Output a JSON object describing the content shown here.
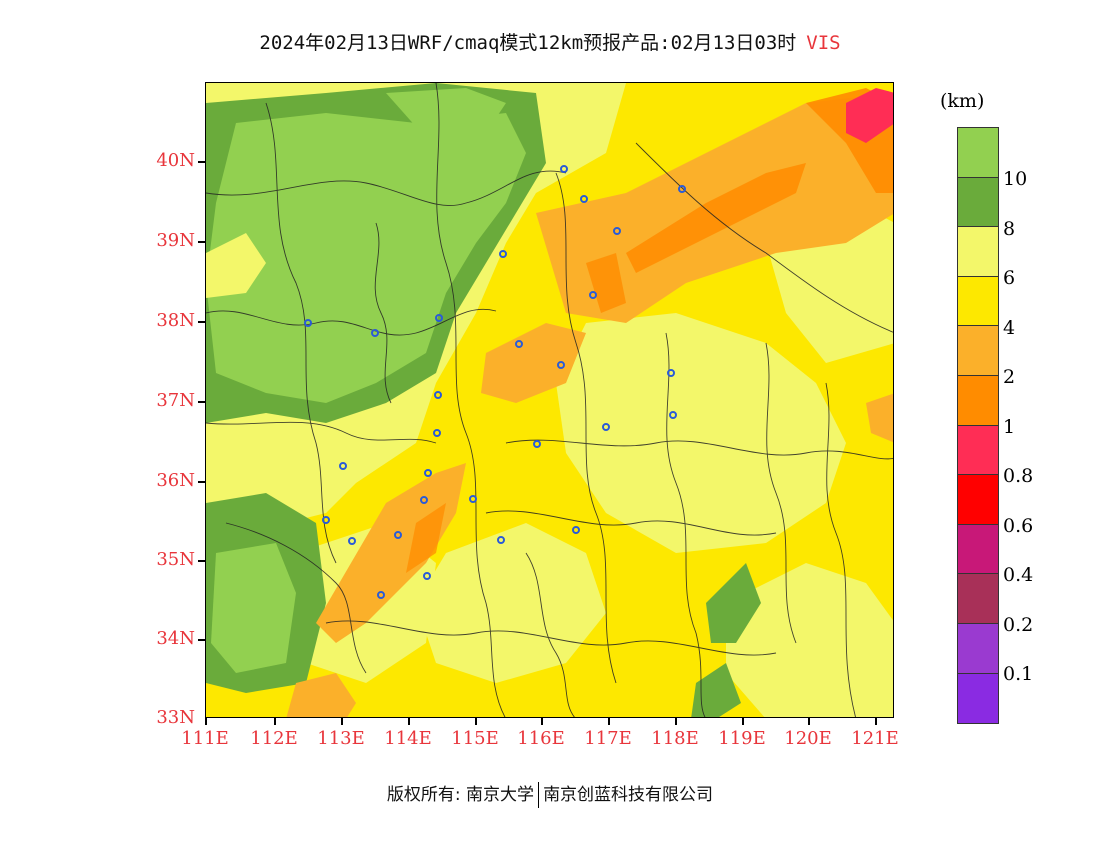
{
  "title": {
    "text": "2024年02月13日WRF/cmaq模式12km预报产品:02月13日03时",
    "variable": "VIS"
  },
  "axes": {
    "y_labels": [
      "40N",
      "39N",
      "38N",
      "37N",
      "36N",
      "35N",
      "34N",
      "33N"
    ],
    "x_labels": [
      "111E",
      "112E",
      "113E",
      "114E",
      "115E",
      "116E",
      "117E",
      "118E",
      "119E",
      "120E",
      "121E"
    ]
  },
  "colorbar": {
    "unit": "(km)",
    "segments": [
      {
        "color": "#92d050"
      },
      {
        "color": "#6aab3b"
      },
      {
        "color": "#f3f76a"
      },
      {
        "color": "#fde800"
      },
      {
        "color": "#fbb02a"
      },
      {
        "color": "#ff8c00"
      },
      {
        "color": "#ff2d55"
      },
      {
        "color": "#ff0000"
      },
      {
        "color": "#c81878"
      },
      {
        "color": "#a83058"
      },
      {
        "color": "#9a3ad0"
      },
      {
        "color": "#8a2be2"
      }
    ],
    "labels": [
      "10",
      "8",
      "6",
      "4",
      "2",
      "1",
      "0.8",
      "0.6",
      "0.4",
      "0.2",
      "0.1"
    ]
  },
  "footer": {
    "left": "版权所有: 南京大学",
    "right": "南京创蓝科技有限公司"
  },
  "colors": {
    "accent_label": "#e8353b"
  }
}
